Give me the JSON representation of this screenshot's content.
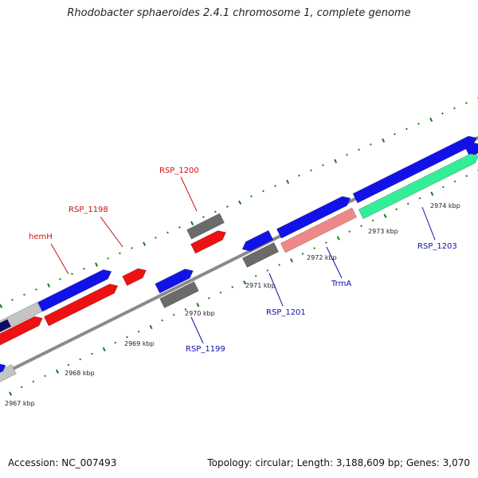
{
  "title": "Rhodobacter sphaeroides 2.4.1 chromosome 1, complete genome",
  "footer": {
    "accession": "Accession: NC_007493",
    "summary": "Topology: circular; Length: 3,188,609 bp; Genes: 3,070"
  },
  "colors": {
    "backbone": "#8a8a8a",
    "ticks": "#1a7a1a",
    "gene_blue": "#1212e8",
    "gene_red": "#ee1111",
    "gene_gray": "#6b6b6b",
    "gene_lightgray": "#c4c4c4",
    "gene_navy": "#0a0a6a",
    "gene_salmon": "#f08888",
    "gene_teal": "#33ee99",
    "label_red": "#cc1111",
    "label_blue": "#1111aa"
  },
  "scale_labels": [
    "2967 kbp",
    "2968 kbp",
    "2969 kbp",
    "2970 kbp",
    "2971 kbp",
    "2972 kbp",
    "2973 kbp",
    "2974 kbp"
  ],
  "gene_labels": [
    {
      "name": "hemH",
      "color": "red"
    },
    {
      "name": "RSP_1198",
      "color": "red"
    },
    {
      "name": "RSP_1200",
      "color": "red"
    },
    {
      "name": "RSP_1199",
      "color": "blue"
    },
    {
      "name": "RSP_1201",
      "color": "blue"
    },
    {
      "name": "TrmA",
      "color": "blue"
    },
    {
      "name": "RSP_1203",
      "color": "blue"
    }
  ]
}
